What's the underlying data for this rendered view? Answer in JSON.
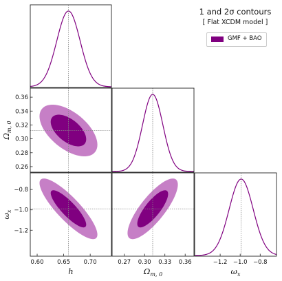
{
  "title": "1 and 2σ contours",
  "subtitle": "[ Flat XCDM model ]",
  "legend": {
    "label": "GMF + BAO"
  },
  "colors": {
    "curve": "#800080",
    "inner_fill": "#800080",
    "outer_fill": "#c67fc6",
    "marker_line": "#888888"
  },
  "axis_labels": {
    "h": {
      "main": "h",
      "sub": ""
    },
    "om": {
      "main": "Ω",
      "sub": "m, 0"
    },
    "wx": {
      "main": "ω",
      "sub": "x"
    }
  },
  "ticks": {
    "h": [
      "0.60",
      "0.65",
      "0.70"
    ],
    "om_x": [
      "0.27",
      "0.30",
      "0.33",
      "0.36"
    ],
    "om_y": [
      "0.26",
      "0.28",
      "0.30",
      "0.32",
      "0.34",
      "0.36"
    ],
    "wx_x": [
      "−1.2",
      "−1.0",
      "−0.8"
    ],
    "wx_y": [
      "−0.8",
      "−1.0",
      "−1.2"
    ]
  },
  "chart_data": {
    "type": "corner",
    "parameters": [
      "h",
      "Ωm,0",
      "ωx"
    ],
    "ranges": {
      "h": [
        0.587,
        0.74
      ],
      "om": [
        0.252,
        0.373
      ],
      "wx": [
        -1.455,
        -0.637
      ]
    },
    "tick_values": {
      "h": [
        0.6,
        0.65,
        0.7
      ],
      "om_x": [
        0.27,
        0.3,
        0.33,
        0.36
      ],
      "om_y": [
        0.26,
        0.28,
        0.3,
        0.32,
        0.34,
        0.36
      ],
      "wx_x": [
        -1.2,
        -1.0,
        -0.8
      ],
      "wx_y": [
        -0.8,
        -1.0,
        -1.2
      ]
    },
    "best_fit": {
      "h": 0.659,
      "om": 0.312,
      "wx": -0.99
    },
    "sigma": {
      "h": 0.022,
      "om": 0.015,
      "wx": 0.12
    },
    "correlations": {
      "h_om": -0.55,
      "h_wx": -0.85,
      "om_wx": 0.8
    },
    "contour_levels": [
      "1σ",
      "2σ"
    ],
    "series": [
      {
        "name": "GMF + BAO"
      }
    ]
  }
}
